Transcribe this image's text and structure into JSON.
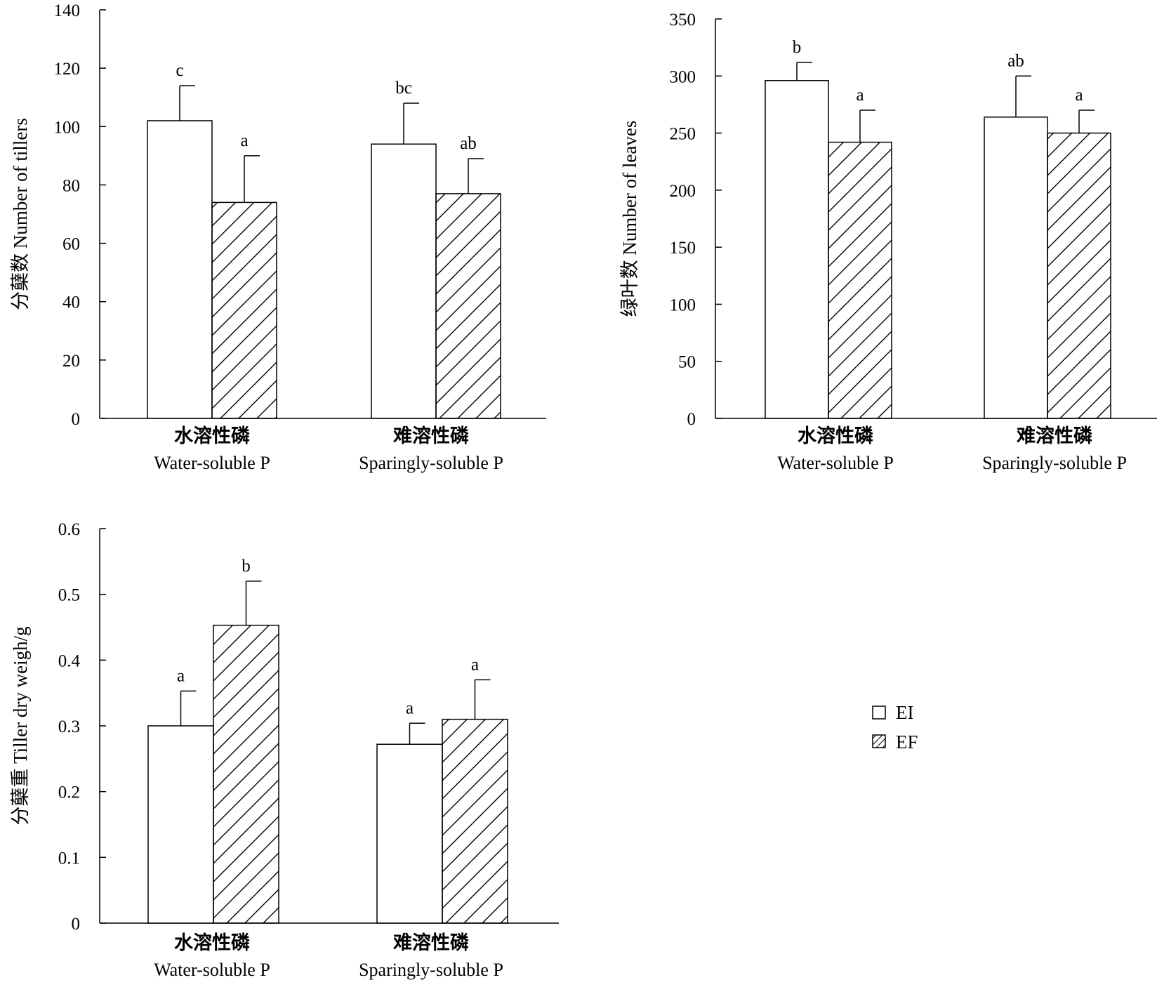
{
  "chart_data": [
    {
      "type": "bar",
      "ylabel": "分蘖数 Number of tillers",
      "ylim": [
        0,
        140
      ],
      "yticks": [
        "0",
        "20",
        "40",
        "60",
        "80",
        "100",
        "120",
        "140"
      ],
      "categories": [
        {
          "zh": "水溶性磷",
          "en": "Water-soluble P"
        },
        {
          "zh": "难溶性磷",
          "en": "Sparingly-soluble P"
        }
      ],
      "series": [
        {
          "name": "EI",
          "values": [
            102,
            94
          ],
          "errors": [
            12,
            14
          ],
          "labels": [
            "c",
            "bc"
          ]
        },
        {
          "name": "EF",
          "values": [
            74,
            77
          ],
          "errors": [
            16,
            12
          ],
          "labels": [
            "a",
            "ab"
          ]
        }
      ]
    },
    {
      "type": "bar",
      "ylabel": "绿叶数 Number of leaves",
      "ylim": [
        0,
        350
      ],
      "yticks": [
        "0",
        "50",
        "100",
        "150",
        "200",
        "250",
        "300",
        "350"
      ],
      "categories": [
        {
          "zh": "水溶性磷",
          "en": "Water-soluble P"
        },
        {
          "zh": "难溶性磷",
          "en": "Sparingly-soluble P"
        }
      ],
      "series": [
        {
          "name": "EI",
          "values": [
            296,
            264
          ],
          "errors": [
            16,
            36
          ],
          "labels": [
            "b",
            "ab"
          ]
        },
        {
          "name": "EF",
          "values": [
            242,
            250
          ],
          "errors": [
            28,
            20
          ],
          "labels": [
            "a",
            "a"
          ]
        }
      ]
    },
    {
      "type": "bar",
      "ylabel": "分蘖重 Tiller dry weigh/g",
      "ylim": [
        0,
        0.6
      ],
      "yticks": [
        "0",
        "0.1",
        "0.2",
        "0.3",
        "0.4",
        "0.5",
        "0.6"
      ],
      "categories": [
        {
          "zh": "水溶性磷",
          "en": "Water-soluble P"
        },
        {
          "zh": "难溶性磷",
          "en": "Sparingly-soluble P"
        }
      ],
      "series": [
        {
          "name": "EI",
          "values": [
            0.3,
            0.272
          ],
          "errors": [
            0.053,
            0.032
          ],
          "labels": [
            "a",
            "a"
          ]
        },
        {
          "name": "EF",
          "values": [
            0.453,
            0.31
          ],
          "errors": [
            0.067,
            0.06
          ],
          "labels": [
            "b",
            "a"
          ]
        }
      ]
    }
  ],
  "legend": {
    "items": [
      {
        "name": "EI",
        "pattern": "open"
      },
      {
        "name": "EF",
        "pattern": "hatched"
      }
    ]
  },
  "colors": {
    "line": "#000000",
    "fill": "#ffffff"
  }
}
